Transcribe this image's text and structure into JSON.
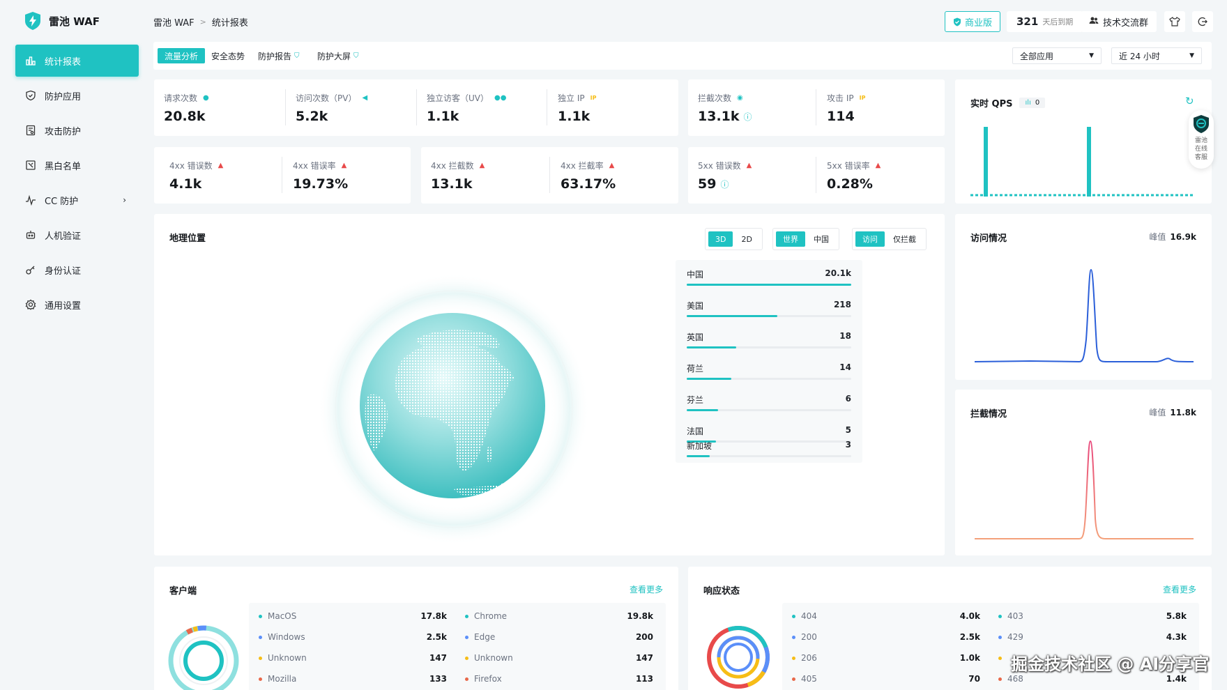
{
  "app": {
    "name": "雷池 WAF"
  },
  "breadcrumb": {
    "root": "雷池 WAF",
    "current": "统计报表"
  },
  "header": {
    "plan_label": "商业版",
    "days_value": "321",
    "days_label": "天后到期",
    "community_label": "技术交流群"
  },
  "sidebar": {
    "items": [
      {
        "label": "统计报表",
        "icon": "bar-chart-icon",
        "active": true
      },
      {
        "label": "防护应用",
        "icon": "shield-icon"
      },
      {
        "label": "攻击防护",
        "icon": "document-icon"
      },
      {
        "label": "黑白名单",
        "icon": "list-icon"
      },
      {
        "label": "CC 防护",
        "icon": "pulse-icon",
        "has_submenu": true
      },
      {
        "label": "人机验证",
        "icon": "robot-icon"
      },
      {
        "label": "身份认证",
        "icon": "key-icon"
      },
      {
        "label": "通用设置",
        "icon": "gear-icon"
      }
    ]
  },
  "tabs": [
    {
      "label": "流量分析",
      "active": true
    },
    {
      "label": "安全态势"
    },
    {
      "label": "防护报告"
    },
    {
      "label": "防护大屏"
    }
  ],
  "filters": {
    "app_select": "全部应用",
    "time_select": "近 24 小时"
  },
  "metrics_row1": [
    {
      "label": "请求次数",
      "value": "20.8k"
    },
    {
      "label": "访问次数（PV）",
      "value": "5.2k"
    },
    {
      "label": "独立访客（UV）",
      "value": "1.1k"
    },
    {
      "label": "独立 IP",
      "value": "1.1k"
    }
  ],
  "metrics_block": [
    {
      "label": "拦截次数",
      "value": "13.1k"
    },
    {
      "label": "攻击 IP",
      "value": "114"
    }
  ],
  "metrics_4xx": [
    {
      "label": "4xx 错误数",
      "value": "4.1k"
    },
    {
      "label": "4xx 错误率",
      "value": "19.73%"
    },
    {
      "label": "4xx 拦截数",
      "value": "13.1k"
    },
    {
      "label": "4xx 拦截率",
      "value": "63.17%"
    }
  ],
  "metrics_5xx": [
    {
      "label": "5xx 错误数",
      "value": "59"
    },
    {
      "label": "5xx 错误率",
      "value": "0.28%"
    }
  ],
  "qps": {
    "title": "实时 QPS",
    "badge": "0"
  },
  "support": {
    "text": "雷池在线客服"
  },
  "geo": {
    "title": "地理位置",
    "toggle_dim": [
      "3D",
      "2D"
    ],
    "toggle_region": [
      "世界",
      "中国"
    ],
    "toggle_type": [
      "访问",
      "仅拦截"
    ],
    "countries": [
      {
        "name": "中国",
        "count": "20.1k",
        "ratio": 1.0
      },
      {
        "name": "美国",
        "count": "218",
        "ratio": 0.55
      },
      {
        "name": "英国",
        "count": "18",
        "ratio": 0.3
      },
      {
        "name": "荷兰",
        "count": "14",
        "ratio": 0.27
      },
      {
        "name": "芬兰",
        "count": "6",
        "ratio": 0.19
      },
      {
        "name": "法国",
        "count": "5",
        "ratio": 0.18
      },
      {
        "name": "新加坡",
        "count": "3",
        "ratio": 0.14
      }
    ]
  },
  "visits": {
    "title": "访问情况",
    "peak_label": "峰值",
    "peak_value": "16.9k"
  },
  "blocks": {
    "title": "拦截情况",
    "peak_label": "峰值",
    "peak_value": "11.8k"
  },
  "client": {
    "title": "客户端",
    "more": "查看更多",
    "os": [
      {
        "name": "MacOS",
        "value": "17.8k",
        "color": "#1fc2c2"
      },
      {
        "name": "Windows",
        "value": "2.5k",
        "color": "#5b8ff9"
      },
      {
        "name": "Unknown",
        "value": "147",
        "color": "#f6bd16"
      },
      {
        "name": "Mozilla",
        "value": "133",
        "color": "#e8684a"
      }
    ],
    "browser": [
      {
        "name": "Chrome",
        "value": "19.8k",
        "color": "#1fc2c2"
      },
      {
        "name": "Edge",
        "value": "200",
        "color": "#5b8ff9"
      },
      {
        "name": "Unknown",
        "value": "147",
        "color": "#f6bd16"
      },
      {
        "name": "Firefox",
        "value": "113",
        "color": "#e8684a"
      }
    ]
  },
  "response": {
    "title": "响应状态",
    "more": "查看更多",
    "col1": [
      {
        "name": "404",
        "value": "4.0k",
        "color": "#1fc2c2"
      },
      {
        "name": "200",
        "value": "2.5k",
        "color": "#5b8ff9"
      },
      {
        "name": "206",
        "value": "1.0k",
        "color": "#f6bd16"
      },
      {
        "name": "405",
        "value": "70",
        "color": "#e8684a"
      }
    ],
    "col2": [
      {
        "name": "403",
        "value": "5.8k",
        "color": "#1fc2c2"
      },
      {
        "name": "429",
        "value": "4.3k",
        "color": "#5b8ff9"
      },
      {
        "name": "",
        "value": "",
        "color": "#f6bd16"
      },
      {
        "name": "468",
        "value": "1.4k",
        "color": "#e8684a"
      }
    ]
  },
  "watermark": "掘金技术社区 @ AI分享官"
}
